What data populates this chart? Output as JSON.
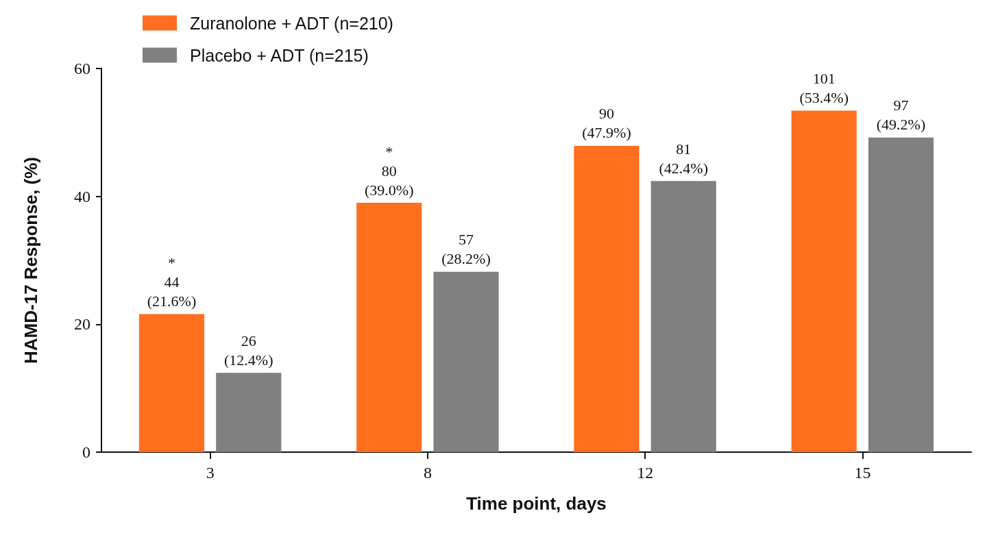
{
  "chart_data": {
    "type": "bar",
    "xlabel": "Time point, days",
    "ylabel": "HAMD-17 Response, (%)",
    "categories": [
      "3",
      "8",
      "12",
      "15"
    ],
    "series": [
      {
        "name": "Zuranolone + ADT (n=210)",
        "color": "#ff6f1e",
        "values": [
          21.6,
          39.0,
          47.9,
          53.4
        ],
        "value_labels": [
          "*\n44\n(21.6%)",
          "*\n80\n(39.0%)",
          "90\n(47.9%)",
          "101\n(53.4%)"
        ]
      },
      {
        "name": "Placebo + ADT (n=215)",
        "color": "#808080",
        "values": [
          12.4,
          28.2,
          42.4,
          49.2
        ],
        "value_labels": [
          "26\n(12.4%)",
          "57\n(28.2%)",
          "81\n(42.4%)",
          "97\n(49.2%)"
        ]
      }
    ],
    "ylim": [
      0,
      60
    ],
    "yticks": [
      0,
      20,
      40,
      60
    ],
    "grid": false,
    "legend": "top left"
  }
}
